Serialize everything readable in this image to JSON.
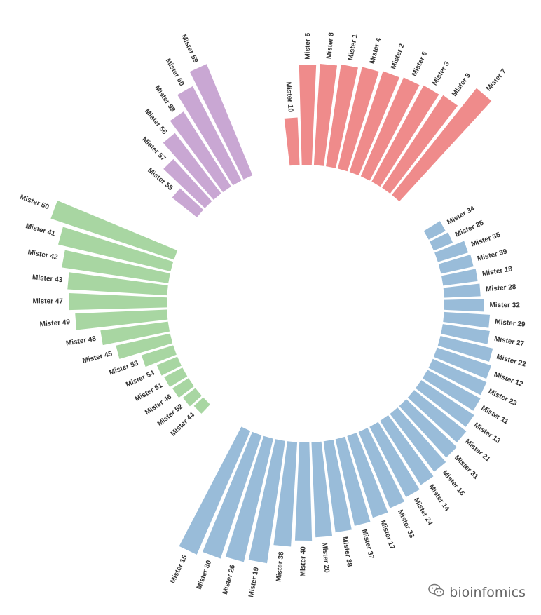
{
  "chart_data": {
    "type": "bar",
    "polar": true,
    "groups": [
      {
        "color": "#ef8b8b",
        "items": [
          {
            "label": "Mister 10",
            "value": 30
          },
          {
            "label": "Mister 5",
            "value": 63
          },
          {
            "label": "Mister 8",
            "value": 64
          },
          {
            "label": "Mister 1",
            "value": 65
          },
          {
            "label": "Mister 4",
            "value": 66
          },
          {
            "label": "Mister 2",
            "value": 67
          },
          {
            "label": "Mister 6",
            "value": 68
          },
          {
            "label": "Mister 3",
            "value": 69
          },
          {
            "label": "Mister 9",
            "value": 70
          },
          {
            "label": "Mister 7",
            "value": 86
          }
        ]
      },
      {
        "color": "#99bcd9",
        "items": [
          {
            "label": "Mister 34",
            "value": 12
          },
          {
            "label": "Mister 25",
            "value": 13
          },
          {
            "label": "Mister 35",
            "value": 20
          },
          {
            "label": "Mister 39",
            "value": 21
          },
          {
            "label": "Mister 18",
            "value": 22
          },
          {
            "label": "Mister 28",
            "value": 23
          },
          {
            "label": "Mister 32",
            "value": 25
          },
          {
            "label": "Mister 29",
            "value": 29
          },
          {
            "label": "Mister 27",
            "value": 30
          },
          {
            "label": "Mister 22",
            "value": 34
          },
          {
            "label": "Mister 12",
            "value": 36
          },
          {
            "label": "Mister 23",
            "value": 37
          },
          {
            "label": "Mister 11",
            "value": 38
          },
          {
            "label": "Mister 13",
            "value": 40
          },
          {
            "label": "Mister 21",
            "value": 42
          },
          {
            "label": "Mister 31",
            "value": 44
          },
          {
            "label": "Mister 16",
            "value": 46
          },
          {
            "label": "Mister 14",
            "value": 48
          },
          {
            "label": "Mister 24",
            "value": 50
          },
          {
            "label": "Mister 33",
            "value": 52
          },
          {
            "label": "Mister 17",
            "value": 54
          },
          {
            "label": "Mister 37",
            "value": 56
          },
          {
            "label": "Mister 38",
            "value": 58
          },
          {
            "label": "Mister 20",
            "value": 60
          },
          {
            "label": "Mister 40",
            "value": 62
          },
          {
            "label": "Mister 36",
            "value": 66
          },
          {
            "label": "Mister 19",
            "value": 78
          },
          {
            "label": "Mister 26",
            "value": 80
          },
          {
            "label": "Mister 30",
            "value": 82
          },
          {
            "label": "Mister 15",
            "value": 85
          }
        ]
      },
      {
        "color": "#a8d6a2",
        "items": [
          {
            "label": "Mister 44",
            "value": 8
          },
          {
            "label": "Mister 52",
            "value": 10
          },
          {
            "label": "Mister 46",
            "value": 12
          },
          {
            "label": "Mister 51",
            "value": 13
          },
          {
            "label": "Mister 54",
            "value": 14
          },
          {
            "label": "Mister 53",
            "value": 21
          },
          {
            "label": "Mister 45",
            "value": 35
          },
          {
            "label": "Mister 48",
            "value": 43
          },
          {
            "label": "Mister 49",
            "value": 58
          },
          {
            "label": "Mister 47",
            "value": 62
          },
          {
            "label": "Mister 43",
            "value": 63
          },
          {
            "label": "Mister 42",
            "value": 68
          },
          {
            "label": "Mister 41",
            "value": 73
          },
          {
            "label": "Mister 50",
            "value": 82
          }
        ]
      },
      {
        "color": "#c9a7d3",
        "items": [
          {
            "label": "Mister 55",
            "value": 20
          },
          {
            "label": "Mister 57",
            "value": 36
          },
          {
            "label": "Mister 56",
            "value": 48
          },
          {
            "label": "Mister 58",
            "value": 56
          },
          {
            "label": "Mister 60",
            "value": 67
          },
          {
            "label": "Mister 59",
            "value": 76
          }
        ]
      }
    ],
    "gap_slots": 3,
    "ylim": [
      0,
      100
    ],
    "title": "",
    "xlabel": "",
    "ylabel": "",
    "legend": false
  },
  "watermark": {
    "icon": "wechat-icon",
    "text": "bioinfomics"
  }
}
